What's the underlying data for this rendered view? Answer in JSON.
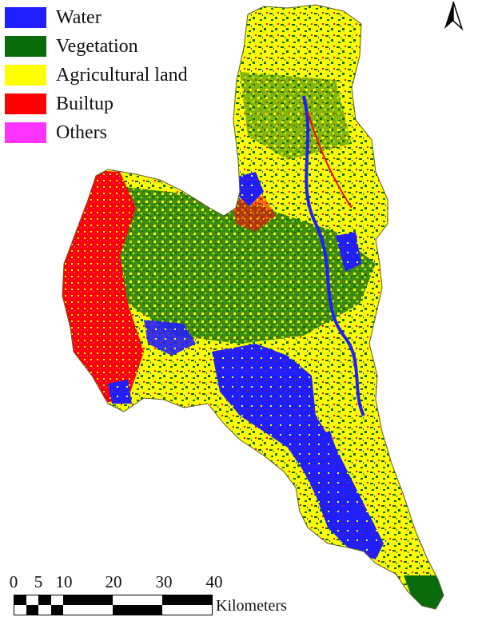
{
  "legend": {
    "items": [
      {
        "label": "Water",
        "color": "#1f1fff"
      },
      {
        "label": "Vegetation",
        "color": "#0a6b0a"
      },
      {
        "label": "Agricultural land",
        "color": "#ffff00"
      },
      {
        "label": "Builtup",
        "color": "#ff0000"
      },
      {
        "label": "Others",
        "color": "#ff33ff"
      }
    ]
  },
  "north_arrow": {
    "icon": "north-arrow-icon"
  },
  "scale_bar": {
    "ticks": [
      "0",
      "5",
      "10",
      "20",
      "30",
      "40"
    ],
    "units": "Kilometers"
  }
}
